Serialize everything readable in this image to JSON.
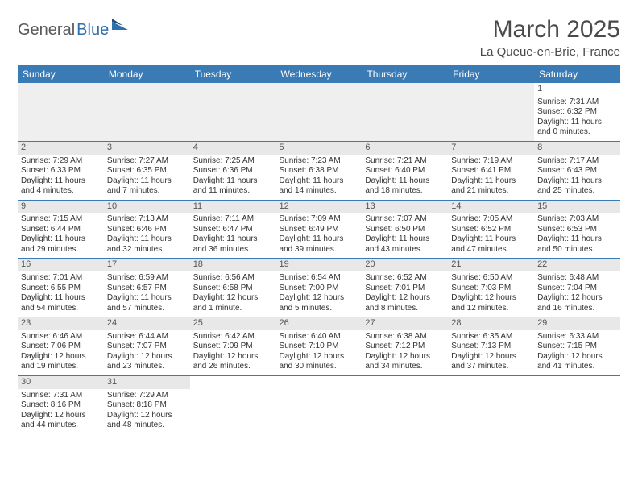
{
  "logo": {
    "dark": "General",
    "blue": "Blue"
  },
  "title": "March 2025",
  "subtitle": "La Queue-en-Brie, France",
  "colors": {
    "header_bg": "#3a7ab5",
    "header_fg": "#ffffff",
    "rule": "#3a7ab5",
    "daynum_bg": "#e8e8e8",
    "text": "#333333",
    "logo_dark": "#5a5a5a",
    "logo_blue": "#2f6fad"
  },
  "day_headers": [
    "Sunday",
    "Monday",
    "Tuesday",
    "Wednesday",
    "Thursday",
    "Friday",
    "Saturday"
  ],
  "weeks": [
    [
      {},
      {},
      {},
      {},
      {},
      {},
      {
        "n": "1",
        "sr": "Sunrise: 7:31 AM",
        "ss": "Sunset: 6:32 PM",
        "d1": "Daylight: 11 hours",
        "d2": "and 0 minutes."
      }
    ],
    [
      {
        "n": "2",
        "sr": "Sunrise: 7:29 AM",
        "ss": "Sunset: 6:33 PM",
        "d1": "Daylight: 11 hours",
        "d2": "and 4 minutes."
      },
      {
        "n": "3",
        "sr": "Sunrise: 7:27 AM",
        "ss": "Sunset: 6:35 PM",
        "d1": "Daylight: 11 hours",
        "d2": "and 7 minutes."
      },
      {
        "n": "4",
        "sr": "Sunrise: 7:25 AM",
        "ss": "Sunset: 6:36 PM",
        "d1": "Daylight: 11 hours",
        "d2": "and 11 minutes."
      },
      {
        "n": "5",
        "sr": "Sunrise: 7:23 AM",
        "ss": "Sunset: 6:38 PM",
        "d1": "Daylight: 11 hours",
        "d2": "and 14 minutes."
      },
      {
        "n": "6",
        "sr": "Sunrise: 7:21 AM",
        "ss": "Sunset: 6:40 PM",
        "d1": "Daylight: 11 hours",
        "d2": "and 18 minutes."
      },
      {
        "n": "7",
        "sr": "Sunrise: 7:19 AM",
        "ss": "Sunset: 6:41 PM",
        "d1": "Daylight: 11 hours",
        "d2": "and 21 minutes."
      },
      {
        "n": "8",
        "sr": "Sunrise: 7:17 AM",
        "ss": "Sunset: 6:43 PM",
        "d1": "Daylight: 11 hours",
        "d2": "and 25 minutes."
      }
    ],
    [
      {
        "n": "9",
        "sr": "Sunrise: 7:15 AM",
        "ss": "Sunset: 6:44 PM",
        "d1": "Daylight: 11 hours",
        "d2": "and 29 minutes."
      },
      {
        "n": "10",
        "sr": "Sunrise: 7:13 AM",
        "ss": "Sunset: 6:46 PM",
        "d1": "Daylight: 11 hours",
        "d2": "and 32 minutes."
      },
      {
        "n": "11",
        "sr": "Sunrise: 7:11 AM",
        "ss": "Sunset: 6:47 PM",
        "d1": "Daylight: 11 hours",
        "d2": "and 36 minutes."
      },
      {
        "n": "12",
        "sr": "Sunrise: 7:09 AM",
        "ss": "Sunset: 6:49 PM",
        "d1": "Daylight: 11 hours",
        "d2": "and 39 minutes."
      },
      {
        "n": "13",
        "sr": "Sunrise: 7:07 AM",
        "ss": "Sunset: 6:50 PM",
        "d1": "Daylight: 11 hours",
        "d2": "and 43 minutes."
      },
      {
        "n": "14",
        "sr": "Sunrise: 7:05 AM",
        "ss": "Sunset: 6:52 PM",
        "d1": "Daylight: 11 hours",
        "d2": "and 47 minutes."
      },
      {
        "n": "15",
        "sr": "Sunrise: 7:03 AM",
        "ss": "Sunset: 6:53 PM",
        "d1": "Daylight: 11 hours",
        "d2": "and 50 minutes."
      }
    ],
    [
      {
        "n": "16",
        "sr": "Sunrise: 7:01 AM",
        "ss": "Sunset: 6:55 PM",
        "d1": "Daylight: 11 hours",
        "d2": "and 54 minutes."
      },
      {
        "n": "17",
        "sr": "Sunrise: 6:59 AM",
        "ss": "Sunset: 6:57 PM",
        "d1": "Daylight: 11 hours",
        "d2": "and 57 minutes."
      },
      {
        "n": "18",
        "sr": "Sunrise: 6:56 AM",
        "ss": "Sunset: 6:58 PM",
        "d1": "Daylight: 12 hours",
        "d2": "and 1 minute."
      },
      {
        "n": "19",
        "sr": "Sunrise: 6:54 AM",
        "ss": "Sunset: 7:00 PM",
        "d1": "Daylight: 12 hours",
        "d2": "and 5 minutes."
      },
      {
        "n": "20",
        "sr": "Sunrise: 6:52 AM",
        "ss": "Sunset: 7:01 PM",
        "d1": "Daylight: 12 hours",
        "d2": "and 8 minutes."
      },
      {
        "n": "21",
        "sr": "Sunrise: 6:50 AM",
        "ss": "Sunset: 7:03 PM",
        "d1": "Daylight: 12 hours",
        "d2": "and 12 minutes."
      },
      {
        "n": "22",
        "sr": "Sunrise: 6:48 AM",
        "ss": "Sunset: 7:04 PM",
        "d1": "Daylight: 12 hours",
        "d2": "and 16 minutes."
      }
    ],
    [
      {
        "n": "23",
        "sr": "Sunrise: 6:46 AM",
        "ss": "Sunset: 7:06 PM",
        "d1": "Daylight: 12 hours",
        "d2": "and 19 minutes."
      },
      {
        "n": "24",
        "sr": "Sunrise: 6:44 AM",
        "ss": "Sunset: 7:07 PM",
        "d1": "Daylight: 12 hours",
        "d2": "and 23 minutes."
      },
      {
        "n": "25",
        "sr": "Sunrise: 6:42 AM",
        "ss": "Sunset: 7:09 PM",
        "d1": "Daylight: 12 hours",
        "d2": "and 26 minutes."
      },
      {
        "n": "26",
        "sr": "Sunrise: 6:40 AM",
        "ss": "Sunset: 7:10 PM",
        "d1": "Daylight: 12 hours",
        "d2": "and 30 minutes."
      },
      {
        "n": "27",
        "sr": "Sunrise: 6:38 AM",
        "ss": "Sunset: 7:12 PM",
        "d1": "Daylight: 12 hours",
        "d2": "and 34 minutes."
      },
      {
        "n": "28",
        "sr": "Sunrise: 6:35 AM",
        "ss": "Sunset: 7:13 PM",
        "d1": "Daylight: 12 hours",
        "d2": "and 37 minutes."
      },
      {
        "n": "29",
        "sr": "Sunrise: 6:33 AM",
        "ss": "Sunset: 7:15 PM",
        "d1": "Daylight: 12 hours",
        "d2": "and 41 minutes."
      }
    ],
    [
      {
        "n": "30",
        "sr": "Sunrise: 7:31 AM",
        "ss": "Sunset: 8:16 PM",
        "d1": "Daylight: 12 hours",
        "d2": "and 44 minutes."
      },
      {
        "n": "31",
        "sr": "Sunrise: 7:29 AM",
        "ss": "Sunset: 8:18 PM",
        "d1": "Daylight: 12 hours",
        "d2": "and 48 minutes."
      },
      {},
      {},
      {},
      {},
      {}
    ]
  ]
}
